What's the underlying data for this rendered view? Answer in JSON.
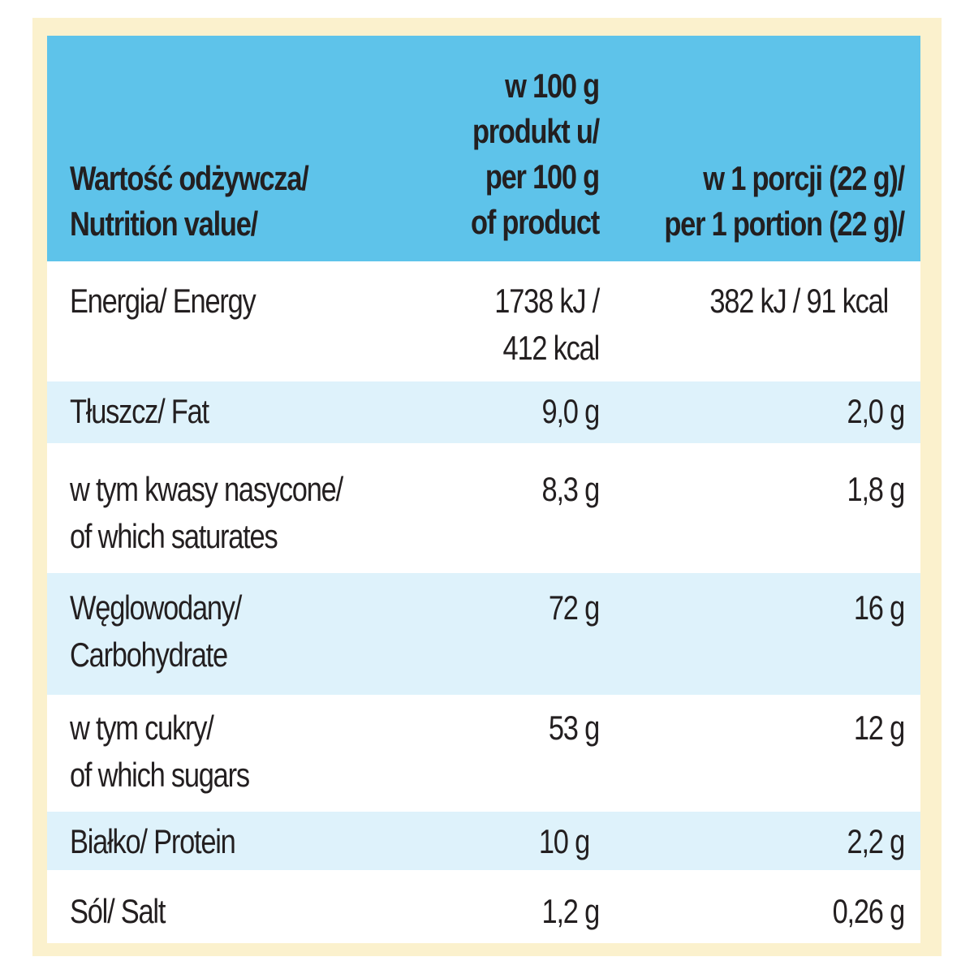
{
  "header": {
    "col1": "Wartość odżywcza/\nNutrition value/",
    "col2": "w 100 g\nprodukt u/\nper 100 g\nof product",
    "col3": "w 1 porcji (22 g)/\nper 1 portion (22 g)/"
  },
  "rows": [
    {
      "name": "Energia/ Energy",
      "per100": "1738 kJ /\n412 kcal",
      "portion": "382 kJ / 91 kcal"
    },
    {
      "name": "Tłuszcz/ Fat",
      "per100": "9,0 g",
      "portion": "2,0 g"
    },
    {
      "name": "w tym kwasy nasycone/\nof which saturates",
      "per100": "8,3 g",
      "portion": "1,8 g"
    },
    {
      "name": "Węglowodany/\nCarbohydrate",
      "per100": "72 g",
      "portion": "16 g"
    },
    {
      "name": "w tym cukry/\nof which sugars",
      "per100": "53 g",
      "portion": "12 g"
    },
    {
      "name": "Białko/ Protein",
      "per100": "10 g",
      "portion": "2,2 g"
    },
    {
      "name": "Sól/ Salt",
      "per100": "1,2 g",
      "portion": "0,26 g"
    }
  ],
  "colors": {
    "header_bg": "#5ec3ea",
    "stripe_bg": "#def2fb",
    "frame_bg": "#fbf1cd",
    "text": "#231f20"
  }
}
